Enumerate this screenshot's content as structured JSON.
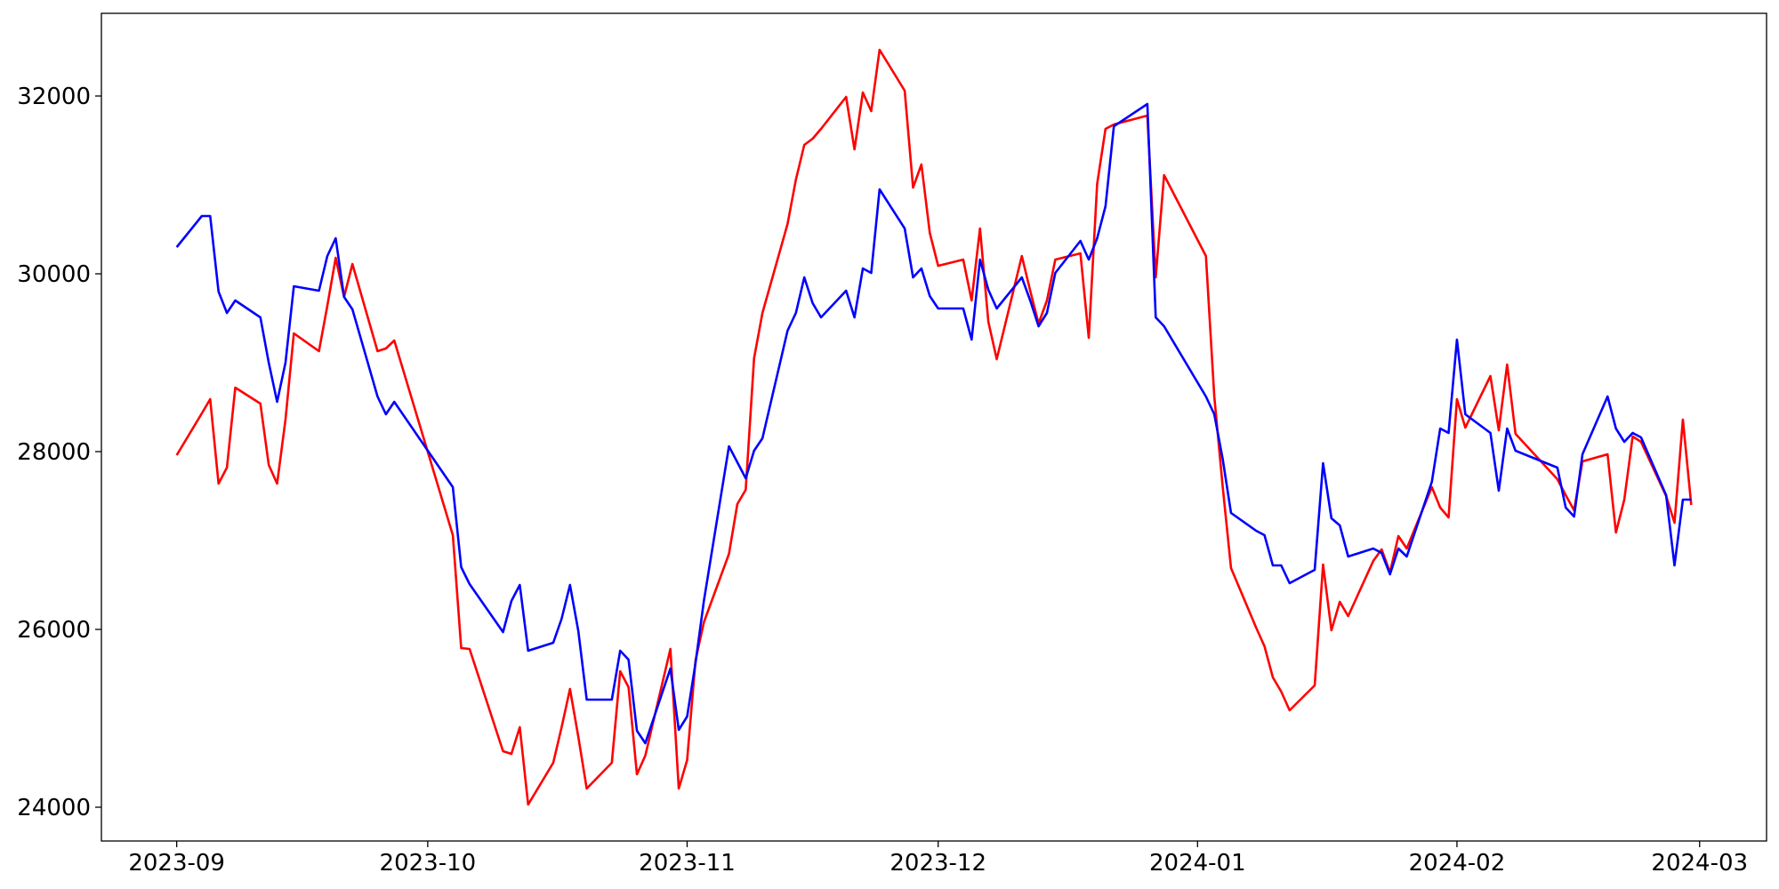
{
  "chart_data": {
    "type": "line",
    "x": [
      "2023-09-01",
      "2023-09-04",
      "2023-09-05",
      "2023-09-06",
      "2023-09-07",
      "2023-09-08",
      "2023-09-11",
      "2023-09-12",
      "2023-09-13",
      "2023-09-14",
      "2023-09-15",
      "2023-09-18",
      "2023-09-19",
      "2023-09-20",
      "2023-09-21",
      "2023-09-22",
      "2023-09-25",
      "2023-09-26",
      "2023-09-27",
      "2023-10-04",
      "2023-10-05",
      "2023-10-06",
      "2023-10-10",
      "2023-10-11",
      "2023-10-12",
      "2023-10-13",
      "2023-10-16",
      "2023-10-17",
      "2023-10-18",
      "2023-10-19",
      "2023-10-20",
      "2023-10-23",
      "2023-10-24",
      "2023-10-25",
      "2023-10-26",
      "2023-10-27",
      "2023-10-30",
      "2023-10-31",
      "2023-11-01",
      "2023-11-02",
      "2023-11-03",
      "2023-11-06",
      "2023-11-07",
      "2023-11-08",
      "2023-11-09",
      "2023-11-10",
      "2023-11-13",
      "2023-11-14",
      "2023-11-15",
      "2023-11-16",
      "2023-11-17",
      "2023-11-20",
      "2023-11-21",
      "2023-11-22",
      "2023-11-23",
      "2023-11-24",
      "2023-11-27",
      "2023-11-28",
      "2023-11-29",
      "2023-11-30",
      "2023-12-01",
      "2023-12-04",
      "2023-12-05",
      "2023-12-06",
      "2023-12-07",
      "2023-12-08",
      "2023-12-11",
      "2023-12-12",
      "2023-12-13",
      "2023-12-14",
      "2023-12-15",
      "2023-12-18",
      "2023-12-19",
      "2023-12-20",
      "2023-12-21",
      "2023-12-22",
      "2023-12-26",
      "2023-12-27",
      "2023-12-28",
      "2024-01-02",
      "2024-01-03",
      "2024-01-04",
      "2024-01-05",
      "2024-01-08",
      "2024-01-09",
      "2024-01-10",
      "2024-01-11",
      "2024-01-12",
      "2024-01-15",
      "2024-01-16",
      "2024-01-17",
      "2024-01-18",
      "2024-01-19",
      "2024-01-22",
      "2024-01-23",
      "2024-01-24",
      "2024-01-25",
      "2024-01-26",
      "2024-01-29",
      "2024-01-30",
      "2024-01-31",
      "2024-02-01",
      "2024-02-02",
      "2024-02-05",
      "2024-02-06",
      "2024-02-07",
      "2024-02-08",
      "2024-02-13",
      "2024-02-14",
      "2024-02-15",
      "2024-02-16",
      "2024-02-19",
      "2024-02-20",
      "2024-02-21",
      "2024-02-22",
      "2024-02-23",
      "2024-02-26",
      "2024-02-27",
      "2024-02-28",
      "2024-02-29"
    ],
    "series": [
      {
        "color": "#ff0000",
        "values": [
          27960,
          28430,
          28590,
          27640,
          27820,
          28720,
          28540,
          27850,
          27640,
          28360,
          29330,
          29130,
          29640,
          30180,
          29740,
          30110,
          29130,
          29160,
          29250,
          27060,
          25790,
          25780,
          24630,
          24600,
          24900,
          24030,
          24500,
          24900,
          25330,
          24790,
          24210,
          24500,
          25530,
          25350,
          24370,
          24580,
          25780,
          24210,
          24530,
          25650,
          26080,
          26850,
          27410,
          27570,
          29050,
          29560,
          30560,
          31060,
          31450,
          31520,
          31630,
          31990,
          31400,
          32040,
          31830,
          32520,
          32060,
          30970,
          31230,
          30460,
          30090,
          30160,
          29700,
          30510,
          29460,
          29040,
          30200,
          29810,
          29440,
          29700,
          30160,
          30230,
          29280,
          31010,
          31630,
          31680,
          31780,
          29960,
          31110,
          30200,
          28620,
          27610,
          26690,
          26020,
          25810,
          25460,
          25300,
          25090,
          25370,
          26730,
          25990,
          26310,
          26150,
          26770,
          26900,
          26640,
          27050,
          26910,
          27600,
          27370,
          27260,
          28590,
          28270,
          28850,
          28240,
          28980,
          28200,
          27690,
          27510,
          27340,
          27890,
          27970,
          27090,
          27460,
          28170,
          28110,
          27500,
          27200,
          28360,
          27400
        ]
      },
      {
        "color": "#0000ff",
        "values": [
          30300,
          30650,
          30650,
          29800,
          29560,
          29700,
          29510,
          29000,
          28560,
          29000,
          29860,
          29810,
          30200,
          30400,
          29740,
          29600,
          28620,
          28420,
          28560,
          27600,
          26700,
          26510,
          25970,
          26320,
          26500,
          25760,
          25850,
          26120,
          26500,
          25980,
          25210,
          25210,
          25760,
          25660,
          24860,
          24720,
          25560,
          24870,
          25020,
          25620,
          26320,
          28060,
          27880,
          27700,
          28010,
          28150,
          29360,
          29560,
          29960,
          29670,
          29510,
          29810,
          29510,
          30060,
          30010,
          30950,
          30510,
          29960,
          30060,
          29750,
          29610,
          29610,
          29260,
          30160,
          29820,
          29610,
          29960,
          29700,
          29410,
          29560,
          30010,
          30370,
          30160,
          30400,
          30760,
          31660,
          31910,
          29510,
          29410,
          28620,
          28420,
          27920,
          27310,
          27110,
          27060,
          26720,
          26720,
          26520,
          26670,
          27870,
          27250,
          27170,
          26820,
          26910,
          26860,
          26620,
          26910,
          26820,
          27660,
          28260,
          28210,
          29260,
          28420,
          28210,
          27560,
          28260,
          28010,
          27820,
          27370,
          27270,
          27970,
          28620,
          28260,
          28110,
          28210,
          28160,
          27510,
          26720,
          27460,
          27460
        ]
      }
    ],
    "xlim": [
      "2023-08-23",
      "2024-03-09"
    ],
    "xticks": [
      {
        "value": "2023-09-01",
        "label": "2023-09"
      },
      {
        "value": "2023-10-01",
        "label": "2023-10"
      },
      {
        "value": "2023-11-01",
        "label": "2023-11"
      },
      {
        "value": "2023-12-01",
        "label": "2023-12"
      },
      {
        "value": "2024-01-01",
        "label": "2024-01"
      },
      {
        "value": "2024-02-01",
        "label": "2024-02"
      },
      {
        "value": "2024-03-01",
        "label": "2024-03"
      }
    ],
    "ylim": [
      23620,
      32930
    ],
    "yticks": [
      24000,
      26000,
      28000,
      30000,
      32000
    ],
    "grid": false
  }
}
